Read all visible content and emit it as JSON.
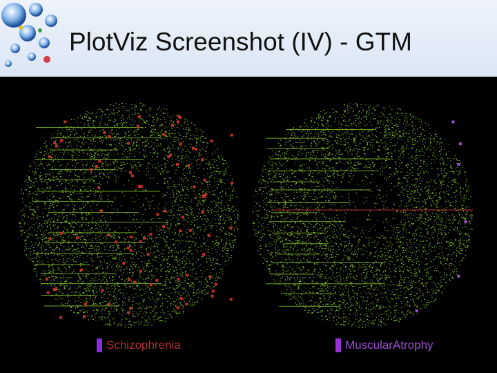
{
  "slide": {
    "title": "PlotViz Screenshot (IV) - GTM"
  },
  "plots": [
    {
      "legend": "Schizophrenia",
      "legend_color": "#8a2be2",
      "legend_text_color": "#b0303a",
      "base_color": "#8fcf2a",
      "highlight_color": "#c0302a"
    },
    {
      "legend": "MuscularAtrophy",
      "legend_color": "#9b30d8",
      "legend_text_color": "#9b4fd0",
      "base_color": "#8fcf2a",
      "highlight_color": "#a050d0"
    }
  ],
  "icons": {
    "logo": "globe-network-logo-icon"
  }
}
